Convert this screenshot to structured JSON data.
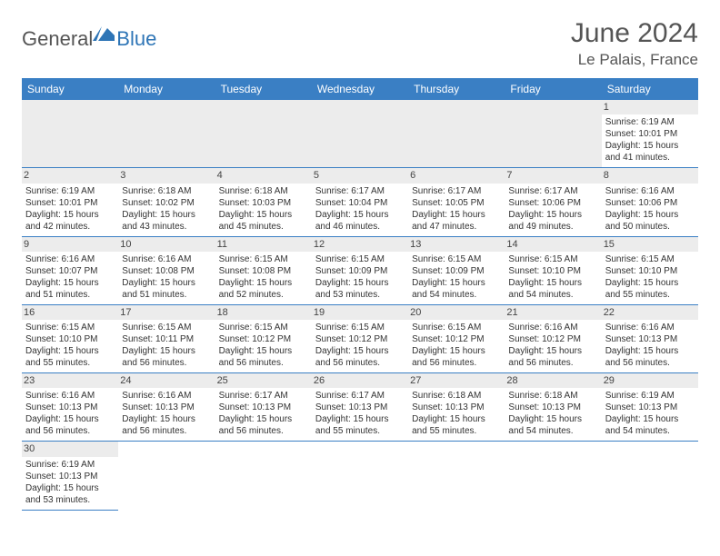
{
  "brand": {
    "part1": "General",
    "part2": "Blue"
  },
  "title": "June 2024",
  "location": "Le Palais, France",
  "colors": {
    "header_bg": "#3a7fc4",
    "header_text": "#ffffff",
    "daynum_bg": "#ececec",
    "cell_border": "#3a7fc4",
    "brand_gray": "#555555",
    "brand_blue": "#2e75b6"
  },
  "day_headers": [
    "Sunday",
    "Monday",
    "Tuesday",
    "Wednesday",
    "Thursday",
    "Friday",
    "Saturday"
  ],
  "weeks": [
    [
      {
        "n": "",
        "sunrise": "",
        "sunset": "",
        "day": ""
      },
      {
        "n": "",
        "sunrise": "",
        "sunset": "",
        "day": ""
      },
      {
        "n": "",
        "sunrise": "",
        "sunset": "",
        "day": ""
      },
      {
        "n": "",
        "sunrise": "",
        "sunset": "",
        "day": ""
      },
      {
        "n": "",
        "sunrise": "",
        "sunset": "",
        "day": ""
      },
      {
        "n": "",
        "sunrise": "",
        "sunset": "",
        "day": ""
      },
      {
        "n": "1",
        "sunrise": "Sunrise: 6:19 AM",
        "sunset": "Sunset: 10:01 PM",
        "day": "Daylight: 15 hours and 41 minutes."
      }
    ],
    [
      {
        "n": "2",
        "sunrise": "Sunrise: 6:19 AM",
        "sunset": "Sunset: 10:01 PM",
        "day": "Daylight: 15 hours and 42 minutes."
      },
      {
        "n": "3",
        "sunrise": "Sunrise: 6:18 AM",
        "sunset": "Sunset: 10:02 PM",
        "day": "Daylight: 15 hours and 43 minutes."
      },
      {
        "n": "4",
        "sunrise": "Sunrise: 6:18 AM",
        "sunset": "Sunset: 10:03 PM",
        "day": "Daylight: 15 hours and 45 minutes."
      },
      {
        "n": "5",
        "sunrise": "Sunrise: 6:17 AM",
        "sunset": "Sunset: 10:04 PM",
        "day": "Daylight: 15 hours and 46 minutes."
      },
      {
        "n": "6",
        "sunrise": "Sunrise: 6:17 AM",
        "sunset": "Sunset: 10:05 PM",
        "day": "Daylight: 15 hours and 47 minutes."
      },
      {
        "n": "7",
        "sunrise": "Sunrise: 6:17 AM",
        "sunset": "Sunset: 10:06 PM",
        "day": "Daylight: 15 hours and 49 minutes."
      },
      {
        "n": "8",
        "sunrise": "Sunrise: 6:16 AM",
        "sunset": "Sunset: 10:06 PM",
        "day": "Daylight: 15 hours and 50 minutes."
      }
    ],
    [
      {
        "n": "9",
        "sunrise": "Sunrise: 6:16 AM",
        "sunset": "Sunset: 10:07 PM",
        "day": "Daylight: 15 hours and 51 minutes."
      },
      {
        "n": "10",
        "sunrise": "Sunrise: 6:16 AM",
        "sunset": "Sunset: 10:08 PM",
        "day": "Daylight: 15 hours and 51 minutes."
      },
      {
        "n": "11",
        "sunrise": "Sunrise: 6:15 AM",
        "sunset": "Sunset: 10:08 PM",
        "day": "Daylight: 15 hours and 52 minutes."
      },
      {
        "n": "12",
        "sunrise": "Sunrise: 6:15 AM",
        "sunset": "Sunset: 10:09 PM",
        "day": "Daylight: 15 hours and 53 minutes."
      },
      {
        "n": "13",
        "sunrise": "Sunrise: 6:15 AM",
        "sunset": "Sunset: 10:09 PM",
        "day": "Daylight: 15 hours and 54 minutes."
      },
      {
        "n": "14",
        "sunrise": "Sunrise: 6:15 AM",
        "sunset": "Sunset: 10:10 PM",
        "day": "Daylight: 15 hours and 54 minutes."
      },
      {
        "n": "15",
        "sunrise": "Sunrise: 6:15 AM",
        "sunset": "Sunset: 10:10 PM",
        "day": "Daylight: 15 hours and 55 minutes."
      }
    ],
    [
      {
        "n": "16",
        "sunrise": "Sunrise: 6:15 AM",
        "sunset": "Sunset: 10:10 PM",
        "day": "Daylight: 15 hours and 55 minutes."
      },
      {
        "n": "17",
        "sunrise": "Sunrise: 6:15 AM",
        "sunset": "Sunset: 10:11 PM",
        "day": "Daylight: 15 hours and 56 minutes."
      },
      {
        "n": "18",
        "sunrise": "Sunrise: 6:15 AM",
        "sunset": "Sunset: 10:12 PM",
        "day": "Daylight: 15 hours and 56 minutes."
      },
      {
        "n": "19",
        "sunrise": "Sunrise: 6:15 AM",
        "sunset": "Sunset: 10:12 PM",
        "day": "Daylight: 15 hours and 56 minutes."
      },
      {
        "n": "20",
        "sunrise": "Sunrise: 6:15 AM",
        "sunset": "Sunset: 10:12 PM",
        "day": "Daylight: 15 hours and 56 minutes."
      },
      {
        "n": "21",
        "sunrise": "Sunrise: 6:16 AM",
        "sunset": "Sunset: 10:12 PM",
        "day": "Daylight: 15 hours and 56 minutes."
      },
      {
        "n": "22",
        "sunrise": "Sunrise: 6:16 AM",
        "sunset": "Sunset: 10:13 PM",
        "day": "Daylight: 15 hours and 56 minutes."
      }
    ],
    [
      {
        "n": "23",
        "sunrise": "Sunrise: 6:16 AM",
        "sunset": "Sunset: 10:13 PM",
        "day": "Daylight: 15 hours and 56 minutes."
      },
      {
        "n": "24",
        "sunrise": "Sunrise: 6:16 AM",
        "sunset": "Sunset: 10:13 PM",
        "day": "Daylight: 15 hours and 56 minutes."
      },
      {
        "n": "25",
        "sunrise": "Sunrise: 6:17 AM",
        "sunset": "Sunset: 10:13 PM",
        "day": "Daylight: 15 hours and 56 minutes."
      },
      {
        "n": "26",
        "sunrise": "Sunrise: 6:17 AM",
        "sunset": "Sunset: 10:13 PM",
        "day": "Daylight: 15 hours and 55 minutes."
      },
      {
        "n": "27",
        "sunrise": "Sunrise: 6:18 AM",
        "sunset": "Sunset: 10:13 PM",
        "day": "Daylight: 15 hours and 55 minutes."
      },
      {
        "n": "28",
        "sunrise": "Sunrise: 6:18 AM",
        "sunset": "Sunset: 10:13 PM",
        "day": "Daylight: 15 hours and 54 minutes."
      },
      {
        "n": "29",
        "sunrise": "Sunrise: 6:19 AM",
        "sunset": "Sunset: 10:13 PM",
        "day": "Daylight: 15 hours and 54 minutes."
      }
    ],
    [
      {
        "n": "30",
        "sunrise": "Sunrise: 6:19 AM",
        "sunset": "Sunset: 10:13 PM",
        "day": "Daylight: 15 hours and 53 minutes."
      },
      {
        "n": "",
        "sunrise": "",
        "sunset": "",
        "day": ""
      },
      {
        "n": "",
        "sunrise": "",
        "sunset": "",
        "day": ""
      },
      {
        "n": "",
        "sunrise": "",
        "sunset": "",
        "day": ""
      },
      {
        "n": "",
        "sunrise": "",
        "sunset": "",
        "day": ""
      },
      {
        "n": "",
        "sunrise": "",
        "sunset": "",
        "day": ""
      },
      {
        "n": "",
        "sunrise": "",
        "sunset": "",
        "day": ""
      }
    ]
  ]
}
